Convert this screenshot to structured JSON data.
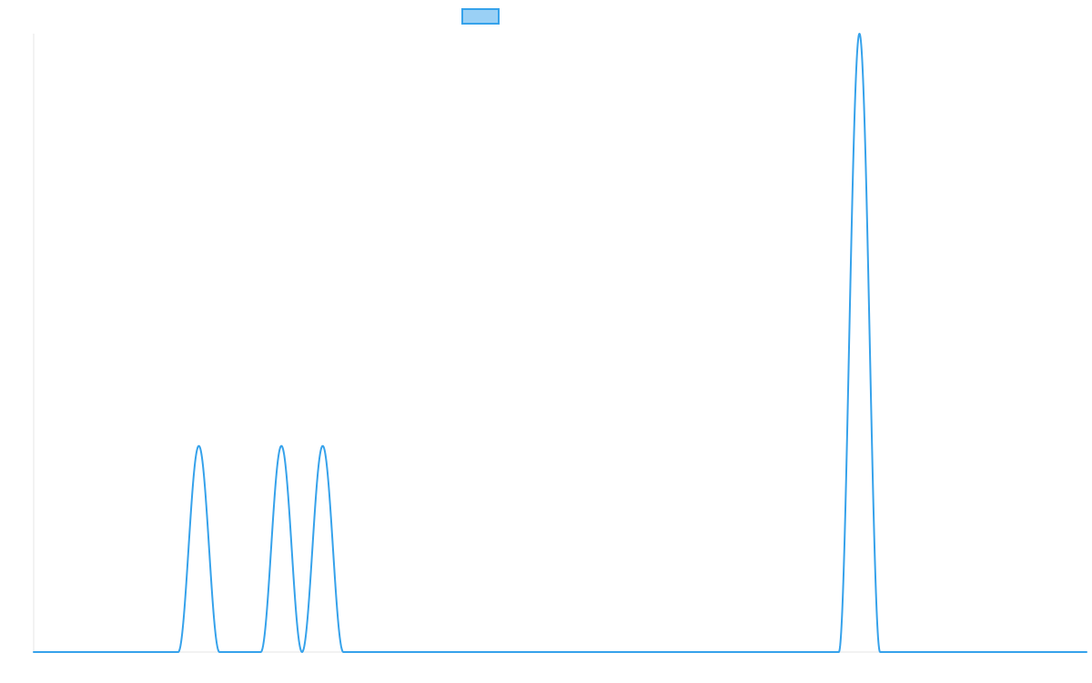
{
  "colors": {
    "series": "#36a2eb",
    "series_fill": "#9ad0f5",
    "axis": "#e6e6e6",
    "background": "#ffffff"
  },
  "chart_data": {
    "type": "line",
    "title": "",
    "xlabel": "",
    "ylabel": "",
    "grid": false,
    "legend": "top-center",
    "xlim": [
      0,
      51
    ],
    "ylim": [
      0,
      3
    ],
    "series": [
      {
        "name": "",
        "peaks": [
          {
            "center": 8,
            "height": 1,
            "half_width": 1
          },
          {
            "center": 12,
            "height": 1,
            "half_width": 1
          },
          {
            "center": 14,
            "height": 1,
            "half_width": 1
          },
          {
            "center": 40,
            "height": 3,
            "half_width": 1
          }
        ]
      }
    ]
  }
}
